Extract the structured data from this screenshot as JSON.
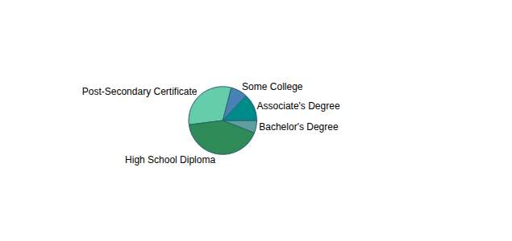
{
  "chart_data": {
    "type": "pie",
    "categories": [
      "Bachelor's Degree",
      "Associate's Degree",
      "Some College",
      "Post-Secondary Certificate",
      "High School Diploma"
    ],
    "values": [
      6,
      13,
      8,
      31,
      42
    ],
    "colors": [
      "#5f9ea0",
      "#008b8b",
      "#4682b4",
      "#66cdaa",
      "#2e8b57"
    ]
  }
}
